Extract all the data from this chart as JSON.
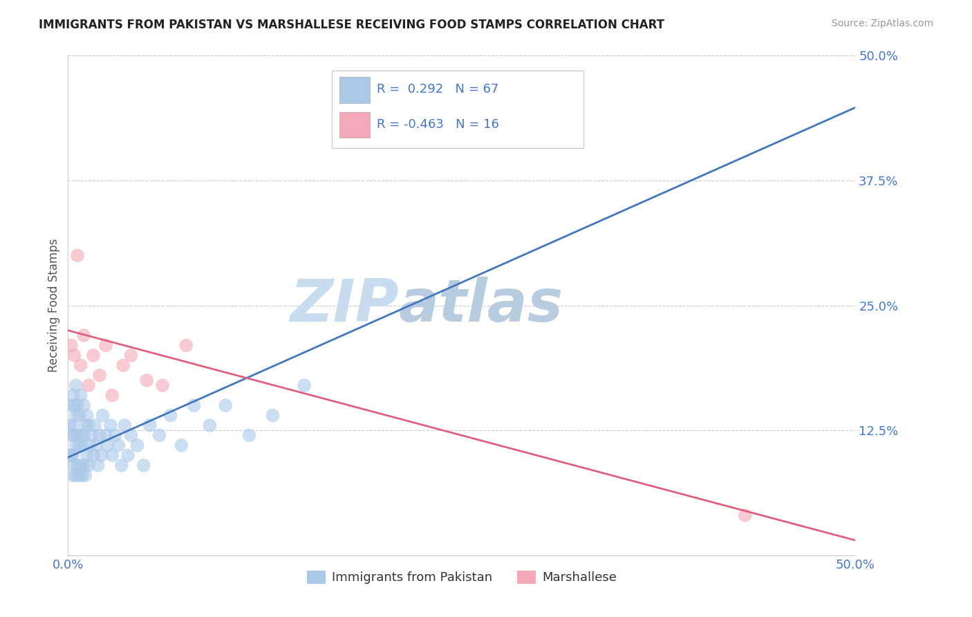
{
  "title": "IMMIGRANTS FROM PAKISTAN VS MARSHALLESE RECEIVING FOOD STAMPS CORRELATION CHART",
  "source": "Source: ZipAtlas.com",
  "ylabel": "Receiving Food Stamps",
  "xlim": [
    0.0,
    0.5
  ],
  "ylim": [
    0.0,
    0.5
  ],
  "xtick_positions": [
    0.0,
    0.5
  ],
  "xtick_labels": [
    "0.0%",
    "50.0%"
  ],
  "ytick_positions": [
    0.125,
    0.25,
    0.375,
    0.5
  ],
  "ytick_labels": [
    "12.5%",
    "25.0%",
    "37.5%",
    "50.0%"
  ],
  "legend_bottom_labels": [
    "Immigrants from Pakistan",
    "Marshallese"
  ],
  "legend_top": {
    "blue_r": "0.292",
    "blue_n": "67",
    "pink_r": "-0.463",
    "pink_n": "16"
  },
  "blue_color": "#aac8e8",
  "pink_color": "#f4a8b8",
  "blue_line_color": "#4477bb",
  "pink_line_color": "#e06080",
  "gray_dash_color": "#aabbcc",
  "watermark_color": "#ccddf0",
  "axis_color": "#4477cc",
  "grid_color": "#cccccc",
  "blue_scatter_x": [
    0.001,
    0.001,
    0.002,
    0.002,
    0.002,
    0.003,
    0.003,
    0.003,
    0.003,
    0.004,
    0.004,
    0.004,
    0.005,
    0.005,
    0.005,
    0.005,
    0.006,
    0.006,
    0.006,
    0.007,
    0.007,
    0.007,
    0.008,
    0.008,
    0.008,
    0.009,
    0.009,
    0.01,
    0.01,
    0.01,
    0.011,
    0.011,
    0.012,
    0.012,
    0.013,
    0.013,
    0.014,
    0.015,
    0.016,
    0.017,
    0.018,
    0.019,
    0.02,
    0.021,
    0.022,
    0.024,
    0.025,
    0.027,
    0.028,
    0.03,
    0.032,
    0.034,
    0.036,
    0.038,
    0.04,
    0.044,
    0.048,
    0.052,
    0.058,
    0.065,
    0.072,
    0.08,
    0.09,
    0.1,
    0.115,
    0.13,
    0.15
  ],
  "blue_scatter_y": [
    0.1,
    0.13,
    0.1,
    0.12,
    0.15,
    0.08,
    0.1,
    0.13,
    0.16,
    0.09,
    0.12,
    0.15,
    0.08,
    0.11,
    0.14,
    0.17,
    0.09,
    0.12,
    0.15,
    0.08,
    0.11,
    0.14,
    0.09,
    0.12,
    0.16,
    0.08,
    0.11,
    0.09,
    0.12,
    0.15,
    0.08,
    0.13,
    0.1,
    0.14,
    0.09,
    0.13,
    0.11,
    0.12,
    0.1,
    0.13,
    0.11,
    0.09,
    0.12,
    0.1,
    0.14,
    0.12,
    0.11,
    0.13,
    0.1,
    0.12,
    0.11,
    0.09,
    0.13,
    0.1,
    0.12,
    0.11,
    0.09,
    0.13,
    0.12,
    0.14,
    0.11,
    0.15,
    0.13,
    0.15,
    0.12,
    0.14,
    0.17
  ],
  "pink_scatter_x": [
    0.002,
    0.004,
    0.006,
    0.008,
    0.01,
    0.013,
    0.016,
    0.02,
    0.024,
    0.028,
    0.035,
    0.04,
    0.05,
    0.06,
    0.075,
    0.43
  ],
  "pink_scatter_y": [
    0.21,
    0.2,
    0.3,
    0.19,
    0.22,
    0.17,
    0.2,
    0.18,
    0.21,
    0.16,
    0.19,
    0.2,
    0.175,
    0.17,
    0.21,
    0.04
  ],
  "blue_trend_intercept": 0.098,
  "blue_trend_slope": 0.7,
  "gray_dash_intercept": 0.098,
  "gray_dash_slope": 0.7,
  "pink_trend_intercept": 0.225,
  "pink_trend_slope": -0.42
}
